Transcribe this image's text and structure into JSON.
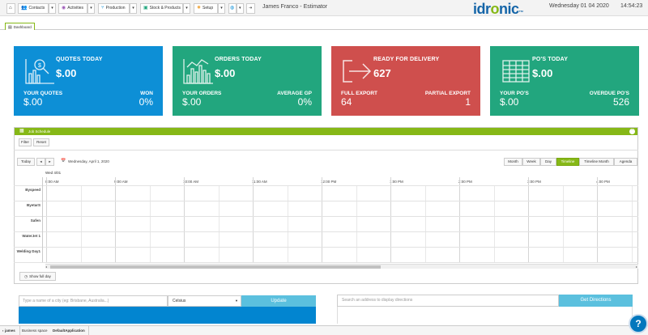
{
  "toolbar": {
    "contacts": "Contacts",
    "activities": "Activities",
    "production": "Production",
    "stock": "Stock & Products",
    "setup": "Setup"
  },
  "app_title": "James Franco - Estimator",
  "logo": {
    "pre": "idr",
    "o": "o",
    "post": "nic",
    "tm": "™"
  },
  "date": "Wednesday 01 04 2020",
  "time": "14:54:23",
  "tab_dashboard": "Dashboard",
  "cards": [
    {
      "title": "QUOTES TODAY",
      "value": "$.00",
      "l_label": "YOUR QUOTES",
      "l_value": "$.00",
      "r_label": "WON",
      "r_value": "0%",
      "color": "#0d8fd6"
    },
    {
      "title": "ORDERS TODAY",
      "value": "$.00",
      "l_label": "YOUR ORDERS",
      "l_value": "$.00",
      "r_label": "AVERAGE GP",
      "r_value": "0%",
      "color": "#22a67e"
    },
    {
      "title": "READY FOR DELIVERY",
      "value": "627",
      "l_label": "FULL EXPORT",
      "l_value": "64",
      "r_label": "PARTIAL EXPORT",
      "r_value": "1",
      "color": "#cf4f4d"
    },
    {
      "title": "PO'S TODAY",
      "value": "$.00",
      "l_label": "YOUR PO'S",
      "l_value": "$.00",
      "r_label": "OVERDUE PO'S",
      "r_value": "526",
      "color": "#22a67e"
    }
  ],
  "schedule": {
    "title": "Job Schedule",
    "filter": "Filter",
    "reset": "Reset",
    "today": "Today",
    "date_label": "Wednesday, April 1, 2020",
    "views": [
      "Month",
      "Week",
      "Day",
      "Timeline",
      "Timeline Month",
      "Agenda"
    ],
    "selected_view": "Timeline",
    "day_header": "Wed 4/01",
    "times": [
      "8:00 AM",
      "9:00 AM",
      "10:00 AM",
      "11:00 AM",
      "12:00 PM",
      "1:00 PM",
      "2:00 PM",
      "3:00 PM",
      "4:00 PM"
    ],
    "resources": [
      "Byspeed",
      "ByetarS",
      "Safen",
      "WaterJet 1",
      "Welding Day1"
    ],
    "show_full_day": "Show full day"
  },
  "weather": {
    "placeholder": "Type a name of a city (eg: Brisbane, Australia...)",
    "unit": "Celsius",
    "update": "Update"
  },
  "directions": {
    "placeholder": "Search an address to display directions",
    "button": "Get Directions"
  },
  "status": {
    "user": "james",
    "workspace": "Business space",
    "application": "DefaultApplication"
  },
  "help": "?"
}
